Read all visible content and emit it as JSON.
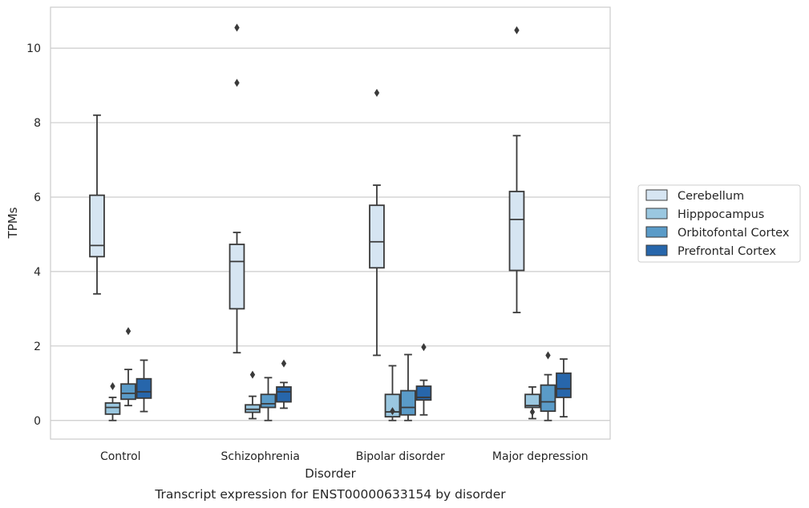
{
  "chart_data": {
    "type": "box",
    "caption": "Transcript expression for ENST00000633154 by disorder",
    "xlabel": "Disorder",
    "ylabel": "TPMs",
    "ylim": [
      -0.5,
      11.1
    ],
    "yticks": [
      0,
      2,
      4,
      6,
      8,
      10
    ],
    "grid": "horizontal",
    "legend_position": "right",
    "categories": [
      "Control",
      "Schizophrenia",
      "Bipolar disorder",
      "Major depression"
    ],
    "series": [
      {
        "name": "Cerebellum",
        "color": "#d6e5f2",
        "boxes": [
          {
            "whislo": 3.4,
            "q1": 4.4,
            "med": 4.7,
            "q3": 6.05,
            "whishi": 8.2,
            "fliers": []
          },
          {
            "whislo": 1.82,
            "q1": 3.0,
            "med": 4.27,
            "q3": 4.73,
            "whishi": 5.05,
            "fliers": [
              9.07,
              10.55
            ]
          },
          {
            "whislo": 1.75,
            "q1": 4.1,
            "med": 4.8,
            "q3": 5.78,
            "whishi": 6.32,
            "fliers": [
              8.8
            ]
          },
          {
            "whislo": 2.9,
            "q1": 4.03,
            "med": 5.4,
            "q3": 6.15,
            "whishi": 7.65,
            "fliers": [
              10.48
            ]
          }
        ]
      },
      {
        "name": "Hipppocampus",
        "color": "#9ac7e0",
        "boxes": [
          {
            "whislo": 0.0,
            "q1": 0.17,
            "med": 0.35,
            "q3": 0.47,
            "whishi": 0.62,
            "fliers": [
              0.92
            ]
          },
          {
            "whislo": 0.05,
            "q1": 0.22,
            "med": 0.3,
            "q3": 0.42,
            "whishi": 0.65,
            "fliers": [
              1.23
            ]
          },
          {
            "whislo": 0.0,
            "q1": 0.1,
            "med": 0.23,
            "q3": 0.7,
            "whishi": 1.47,
            "fliers": [
              0.25
            ]
          },
          {
            "whislo": 0.05,
            "q1": 0.35,
            "med": 0.4,
            "q3": 0.7,
            "whishi": 0.9,
            "fliers": [
              0.23
            ]
          }
        ]
      },
      {
        "name": "Orbitofontal Cortex",
        "color": "#5a9bc8",
        "boxes": [
          {
            "whislo": 0.4,
            "q1": 0.57,
            "med": 0.73,
            "q3": 0.98,
            "whishi": 1.37,
            "fliers": [
              2.4
            ]
          },
          {
            "whislo": 0.0,
            "q1": 0.35,
            "med": 0.45,
            "q3": 0.7,
            "whishi": 1.15,
            "fliers": []
          },
          {
            "whislo": 0.0,
            "q1": 0.15,
            "med": 0.35,
            "q3": 0.8,
            "whishi": 1.77,
            "fliers": []
          },
          {
            "whislo": 0.0,
            "q1": 0.25,
            "med": 0.5,
            "q3": 0.95,
            "whishi": 1.23,
            "fliers": [
              1.75
            ]
          }
        ]
      },
      {
        "name": "Prefrontal Cortex",
        "color": "#2766ab",
        "boxes": [
          {
            "whislo": 0.24,
            "q1": 0.6,
            "med": 0.77,
            "q3": 1.12,
            "whishi": 1.62,
            "fliers": []
          },
          {
            "whislo": 0.33,
            "q1": 0.5,
            "med": 0.77,
            "q3": 0.9,
            "whishi": 1.02,
            "fliers": [
              1.53
            ]
          },
          {
            "whislo": 0.15,
            "q1": 0.55,
            "med": 0.62,
            "q3": 0.92,
            "whishi": 1.08,
            "fliers": [
              1.97
            ]
          },
          {
            "whislo": 0.1,
            "q1": 0.62,
            "med": 0.85,
            "q3": 1.27,
            "whishi": 1.65,
            "fliers": []
          }
        ]
      }
    ]
  }
}
